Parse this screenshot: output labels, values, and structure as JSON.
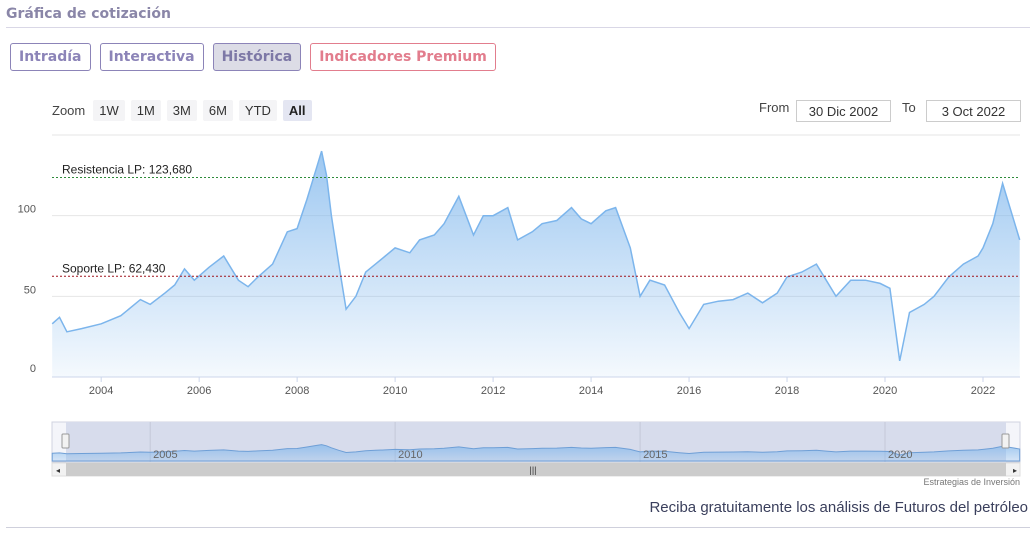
{
  "header": {
    "title": "Gráfica de cotización"
  },
  "tabs": [
    {
      "label": "Intradía",
      "active": false
    },
    {
      "label": "Interactiva",
      "active": false
    },
    {
      "label": "Histórica",
      "active": true
    },
    {
      "label": "Indicadores Premium",
      "active": false
    }
  ],
  "zoom": {
    "label": "Zoom",
    "buttons": [
      "1W",
      "1M",
      "3M",
      "6M",
      "YTD",
      "All"
    ],
    "selected": "All"
  },
  "range": {
    "from_label": "From",
    "from_value": "30 Dic 2002",
    "to_label": "To",
    "to_value": "3 Oct 2022"
  },
  "credit": "Estrategias de Inversión",
  "promo": "Reciba gratuitamente los análisis de Futuros del petróleo",
  "colors": {
    "line": "#7cb5ec",
    "resistance": "#2e8b3a",
    "support": "#a0141e",
    "accent": "#8c84b8"
  },
  "chart_data": {
    "type": "area",
    "xlim": [
      "2002-12-30",
      "2022-10-03"
    ],
    "ylim": [
      0,
      150
    ],
    "y_ticks": [
      0,
      50,
      100
    ],
    "x_ticks": [
      "2004",
      "2006",
      "2008",
      "2010",
      "2012",
      "2014",
      "2016",
      "2018",
      "2020",
      "2022"
    ],
    "navigator_ticks": [
      "2005",
      "2010",
      "2015",
      "2020"
    ],
    "lines": [
      {
        "label": "Resistencia LP: 123,680",
        "value": 123.68
      },
      {
        "label": "Soporte LP: 62,430",
        "value": 62.43
      }
    ],
    "series": [
      {
        "x": [
          2003.0,
          2003.15,
          2003.3,
          2003.6,
          2004.0,
          2004.4,
          2004.8,
          2005.0,
          2005.3,
          2005.5,
          2005.7,
          2005.9,
          2006.2,
          2006.5,
          2006.8,
          2007.0,
          2007.2,
          2007.5,
          2007.8,
          2008.0,
          2008.2,
          2008.4,
          2008.5,
          2008.6,
          2008.7,
          2008.85,
          2009.0,
          2009.2,
          2009.4,
          2009.6,
          2009.8,
          2010.0,
          2010.3,
          2010.5,
          2010.8,
          2011.0,
          2011.3,
          2011.6,
          2011.8,
          2012.0,
          2012.3,
          2012.5,
          2012.8,
          2013.0,
          2013.3,
          2013.6,
          2013.8,
          2014.0,
          2014.3,
          2014.5,
          2014.8,
          2015.0,
          2015.2,
          2015.5,
          2015.8,
          2016.0,
          2016.3,
          2016.6,
          2016.9,
          2017.2,
          2017.5,
          2017.8,
          2018.0,
          2018.3,
          2018.6,
          2018.8,
          2019.0,
          2019.3,
          2019.6,
          2019.9,
          2020.1,
          2020.3,
          2020.5,
          2020.8,
          2021.0,
          2021.3,
          2021.6,
          2021.9,
          2022.0,
          2022.2,
          2022.4,
          2022.6,
          2022.75
        ],
        "values": [
          33,
          37,
          28,
          30,
          33,
          38,
          48,
          45,
          52,
          57,
          67,
          60,
          68,
          75,
          60,
          56,
          62,
          70,
          90,
          92,
          110,
          130,
          140,
          125,
          100,
          70,
          42,
          50,
          65,
          70,
          75,
          80,
          77,
          85,
          88,
          95,
          112,
          88,
          100,
          100,
          105,
          85,
          90,
          95,
          97,
          105,
          98,
          95,
          103,
          105,
          80,
          50,
          60,
          57,
          40,
          30,
          45,
          47,
          48,
          52,
          46,
          52,
          62,
          65,
          70,
          60,
          50,
          60,
          60,
          58,
          55,
          10,
          40,
          45,
          50,
          62,
          70,
          75,
          80,
          95,
          120,
          100,
          85
        ]
      }
    ]
  }
}
